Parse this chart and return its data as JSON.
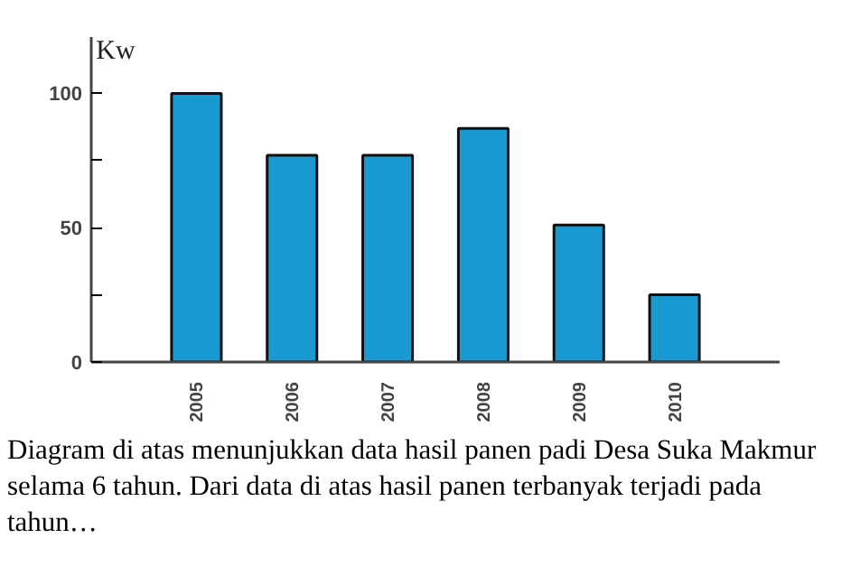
{
  "chart_data": {
    "type": "bar",
    "ylabel": "Kw",
    "categories": [
      "2005",
      "2006",
      "2007",
      "2008",
      "2009",
      "2010"
    ],
    "values": [
      100,
      77,
      77,
      87,
      51,
      25
    ],
    "color": "#1a9ad0",
    "ylim": [
      0,
      121
    ],
    "yticks": [
      0,
      {
        "value": 25,
        "label": null
      },
      50,
      {
        "value": 75,
        "label": null
      },
      100
    ],
    "grid": false,
    "annotations": [
      "Diagram di atas menunjukkan data hasil panen padi Desa Suka Makmur selama 6 tahun. Dari data di atas hasil panen terbanyak terjadi pada tahun…"
    ]
  }
}
